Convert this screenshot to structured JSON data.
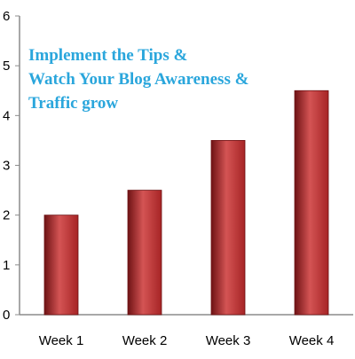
{
  "chart_data": {
    "type": "bar",
    "title": [
      "Implement the Tips &",
      "Watch Your Blog Awareness &",
      "Traffic grow"
    ],
    "categories": [
      "Week 1",
      "Week 2",
      "Week 3",
      "Week 4"
    ],
    "values": [
      2,
      2.5,
      3.5,
      4.5
    ],
    "ylim": [
      0,
      6
    ],
    "yticks": [
      "0",
      "1",
      "2",
      "3",
      "4",
      "5",
      "6"
    ],
    "xlabel": "",
    "ylabel": "",
    "grid": false,
    "legend": "none",
    "colors": {
      "bar": "#a62425",
      "bar_dark": "#6e1214",
      "bar_light": "#d45454",
      "title": "#2aa6dc",
      "axis": "#8c8c8c"
    }
  }
}
